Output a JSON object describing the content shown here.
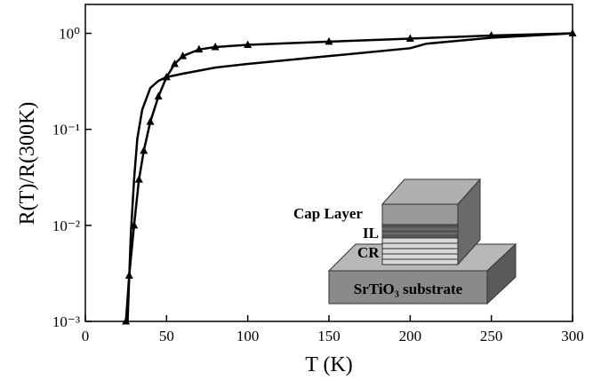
{
  "chart_data": {
    "type": "line",
    "x_label": "T (K)",
    "y_label": "R(T)/R(300K)",
    "log_y": true,
    "xlim": [
      0,
      300
    ],
    "xticks": [
      0,
      50,
      100,
      150,
      200,
      250,
      300
    ],
    "ylim": [
      0.001,
      2
    ],
    "yticks": [
      {
        "value": 0.001,
        "label": "10⁻³"
      },
      {
        "value": 0.01,
        "label": "10⁻²"
      },
      {
        "value": 0.1,
        "label": "10⁻¹"
      },
      {
        "value": 1,
        "label": "10⁰"
      }
    ],
    "series": [
      {
        "color": "#000000",
        "marker": "triangle",
        "x": [
          25,
          27,
          30,
          33,
          36,
          40,
          45,
          50,
          55,
          60,
          70,
          80,
          100,
          150,
          200,
          250,
          300
        ],
        "values": [
          0.001,
          0.003,
          0.01,
          0.03,
          0.06,
          0.12,
          0.22,
          0.35,
          0.48,
          0.58,
          0.68,
          0.72,
          0.76,
          0.82,
          0.88,
          0.95,
          1.0
        ]
      },
      {
        "color": "#000000",
        "x": [
          26,
          28,
          30,
          32,
          35,
          40,
          45,
          50,
          60,
          80,
          100,
          150,
          200,
          210,
          250,
          300
        ],
        "values": [
          0.001,
          0.008,
          0.03,
          0.08,
          0.16,
          0.27,
          0.32,
          0.35,
          0.38,
          0.44,
          0.48,
          0.58,
          0.7,
          0.78,
          0.9,
          1.0
        ]
      }
    ],
    "inset": {
      "cap_label": "Cap Layer",
      "il_label": "IL",
      "cr_label": "CR",
      "substrate_label": "SrTiO₃ substrate"
    }
  }
}
